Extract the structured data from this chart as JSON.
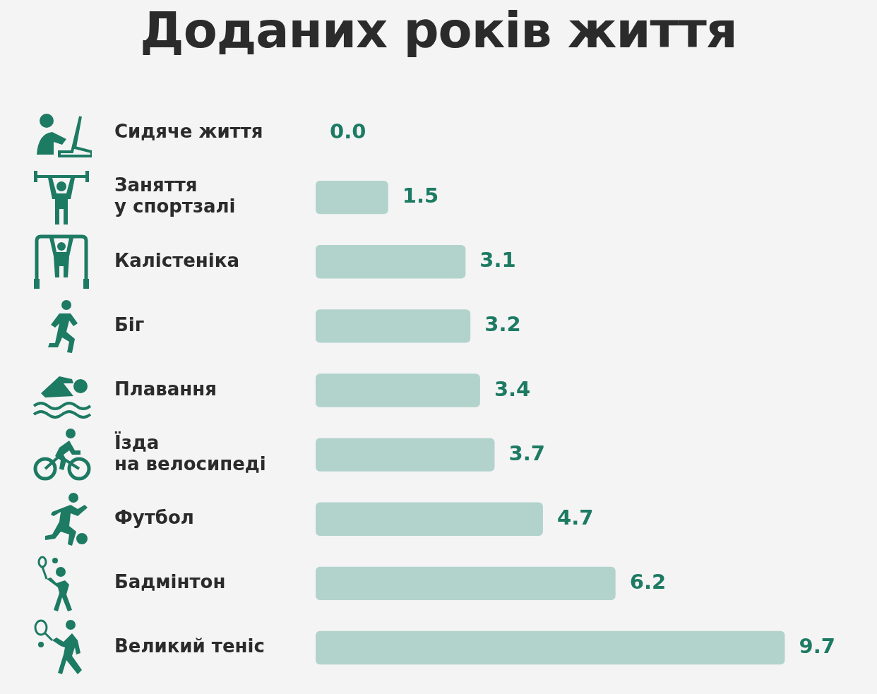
{
  "chart_data": {
    "type": "bar",
    "title": "Доданих років життя",
    "orientation": "horizontal",
    "categories": [
      "Сидяче життя",
      "Заняття у спортзалі",
      "Калістеніка",
      "Біг",
      "Плавання",
      "Їзда на велосипеді",
      "Футбол",
      "Бадмінтон",
      "Великий теніс"
    ],
    "values": [
      0.0,
      1.5,
      3.1,
      3.2,
      3.4,
      3.7,
      4.7,
      6.2,
      9.7
    ],
    "value_labels": [
      "0.0",
      "1.5",
      "3.1",
      "3.2",
      "3.4",
      "3.7",
      "4.7",
      "6.2",
      "9.7"
    ],
    "color": "#b2d3cc"
  }
}
